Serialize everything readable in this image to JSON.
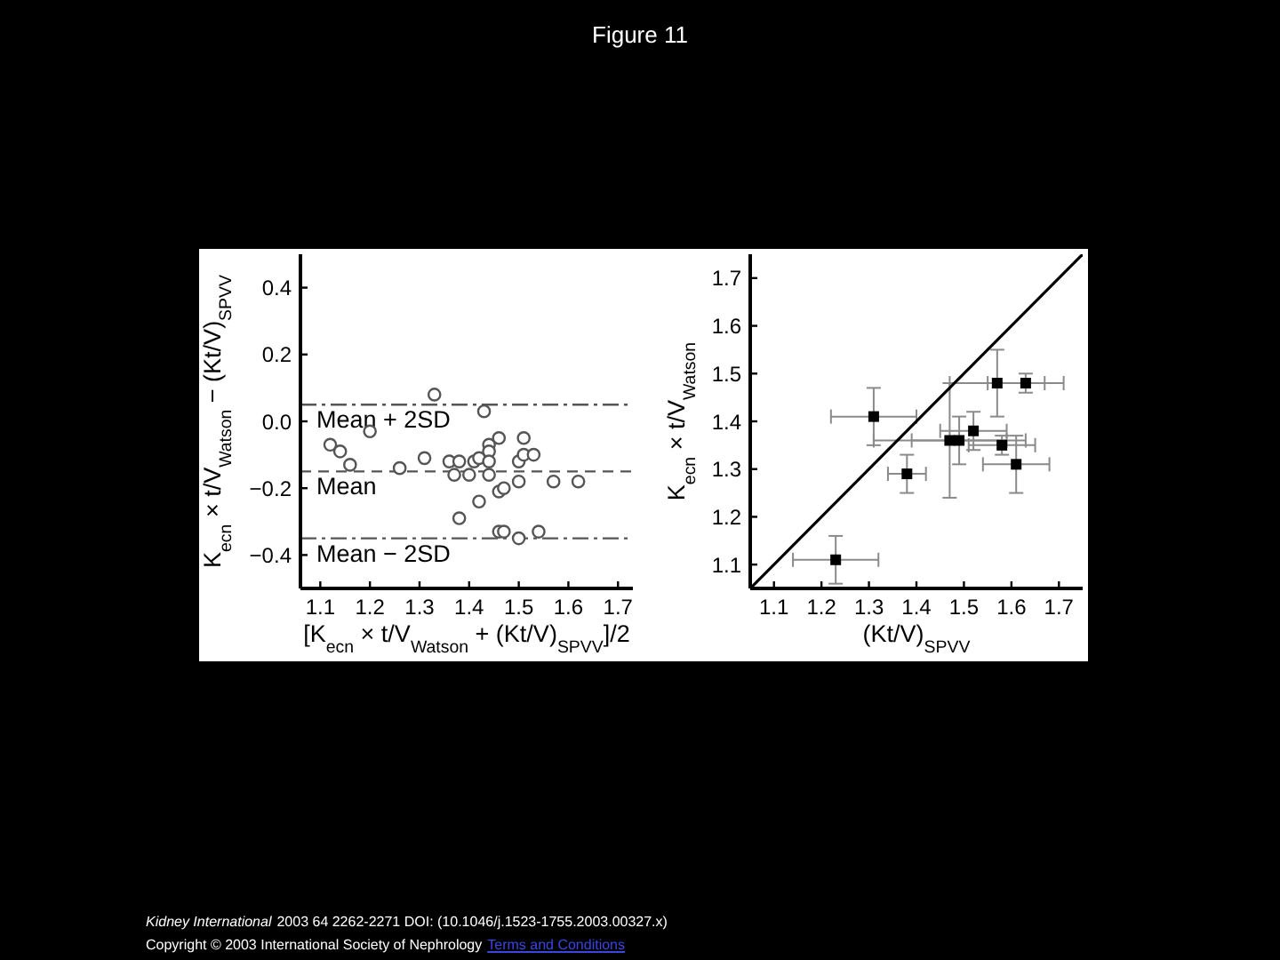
{
  "chart_data": [
    {
      "type": "scatter",
      "title": "Figure 11",
      "xlabel": "[K$_{ecn}$ × t/V$_{Watson}$ + (Kt/V)$_{SPVV}$]/2",
      "ylabel": "K$_{ecn}$ × t/V$_{Watson}$ − (Kt/V)$_{SPVV}$",
      "x": [
        1.12,
        1.14,
        1.16,
        1.2,
        1.26,
        1.31,
        1.33,
        1.36,
        1.37,
        1.38,
        1.38,
        1.4,
        1.41,
        1.42,
        1.42,
        1.43,
        1.44,
        1.44,
        1.44,
        1.44,
        1.46,
        1.46,
        1.46,
        1.47,
        1.47,
        1.5,
        1.5,
        1.5,
        1.51,
        1.51,
        1.53,
        1.54,
        1.57,
        1.62
      ],
      "values": [
        -0.07,
        -0.09,
        -0.13,
        -0.03,
        -0.14,
        -0.11,
        0.08,
        -0.12,
        -0.16,
        -0.12,
        -0.29,
        -0.16,
        -0.12,
        -0.11,
        -0.24,
        0.03,
        -0.07,
        -0.09,
        -0.12,
        -0.16,
        -0.05,
        -0.21,
        -0.33,
        -0.33,
        -0.2,
        -0.18,
        -0.12,
        -0.35,
        -0.1,
        -0.05,
        -0.1,
        -0.33,
        -0.18,
        -0.18
      ],
      "color": "#555555",
      "marker": "circle",
      "xlim": [
        1.06,
        1.73
      ],
      "xticks": [
        1.1,
        1.2,
        1.3,
        1.4,
        1.5,
        1.6,
        1.7
      ],
      "ylim": [
        -0.5,
        0.5
      ],
      "yticks": [
        {
          "value": -0.4,
          "label": "−0.4"
        },
        {
          "value": -0.2,
          "label": "−0.2"
        },
        {
          "value": 0,
          "label": "0.0"
        },
        0.2,
        0.4
      ],
      "ref_lines": [
        {
          "axis": "y",
          "value": 0.05,
          "label": "Mean + 2SD",
          "color": "#555555",
          "line_style": "dashdot"
        },
        {
          "axis": "y",
          "value": -0.15,
          "label": "Mean",
          "color": "#555555",
          "line_style": "dashed"
        },
        {
          "axis": "y",
          "value": -0.35,
          "label": "Mean − 2SD",
          "color": "#555555",
          "line_style": "dashdot"
        }
      ],
      "annotations": [
        "Kidney International",
        "2003 64 2262-2271 DOI: (10.1046/j.1523-1755.2003.00327.x)",
        "Copyright © 2003 International Society of Nephrology",
        "Terms and Conditions"
      ]
    },
    {
      "type": "scatter",
      "xlabel": "(Kt/V)$_{SPVV}$",
      "ylabel": "K$_{ecn}$ × t/V$_{Watson}$",
      "xlim": [
        1.05,
        1.75
      ],
      "xticks": [
        1.1,
        1.2,
        1.3,
        1.4,
        1.5,
        1.6,
        1.7
      ],
      "ylim": [
        1.05,
        1.75
      ],
      "yticks": [
        1.1,
        1.2,
        1.3,
        1.4,
        1.5,
        1.6,
        1.7
      ],
      "marker": "square",
      "series": [
        {
          "type": "line",
          "x": [
            1.05,
            1.75
          ],
          "values": [
            1.05,
            1.75
          ],
          "color": "#000000",
          "marker": "none"
        },
        {
          "x": [
            1.23,
            1.31,
            1.38,
            1.47,
            1.49,
            1.52,
            1.57,
            1.63,
            1.58,
            1.61
          ],
          "values": [
            1.11,
            1.41,
            1.29,
            1.36,
            1.36,
            1.38,
            1.48,
            1.48,
            1.35,
            1.31
          ],
          "errors": [
            0.05,
            0.06,
            0.04,
            0.12,
            0.05,
            0.04,
            0.07,
            0.02,
            0.02,
            0.06
          ],
          "xerrors": [
            0.09,
            0.09,
            0.04,
            0.16,
            0.1,
            0.07,
            0.1,
            0.08,
            0.07,
            0.07
          ],
          "color": "#000000"
        }
      ]
    }
  ]
}
